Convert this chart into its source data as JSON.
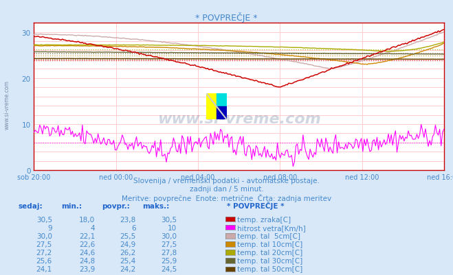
{
  "title": "* POVPREČJE *",
  "bg_color": "#d8e8f8",
  "plot_bg_color": "#ffffff",
  "grid_color": "#ffcccc",
  "text_color": "#4488cc",
  "x_labels": [
    "sob 20:00",
    "ned 00:00",
    "ned 04:00",
    "ned 08:00",
    "ned 12:00",
    "ned 16:00"
  ],
  "x_ticks": [
    0,
    72,
    144,
    216,
    288,
    360
  ],
  "x_total": 360,
  "y_min": 0,
  "y_max": 32,
  "y_ticks": [
    0,
    10,
    20,
    30
  ],
  "subtitle1": "Slovenija / vremenski podatki - avtomatske postaje.",
  "subtitle2": "zadnji dan / 5 minut.",
  "subtitle3": "Meritve: povprečne  Enote: metrične  Črta: zadnja meritev",
  "legend": [
    {
      "label": "temp. zraka[C]",
      "color": "#cc0000"
    },
    {
      "label": "hitrost vetra[Km/h]",
      "color": "#ff00ff"
    },
    {
      "label": "temp. tal  5cm[C]",
      "color": "#ccaaaa"
    },
    {
      "label": "temp. tal 10cm[C]",
      "color": "#cc8800"
    },
    {
      "label": "temp. tal 20cm[C]",
      "color": "#aaaa00"
    },
    {
      "label": "temp. tal 30cm[C]",
      "color": "#666633"
    },
    {
      "label": "temp. tal 50cm[C]",
      "color": "#664400"
    }
  ],
  "table_headers": [
    "sedaj:",
    "min.:",
    "povpr.:",
    "maks.:"
  ],
  "table_data": [
    [
      "30,5",
      "18,0",
      "23,8",
      "30,5"
    ],
    [
      "9",
      "4",
      "6",
      "10"
    ],
    [
      "30,0",
      "22,1",
      "25,5",
      "30,0"
    ],
    [
      "27,5",
      "22,6",
      "24,9",
      "27,5"
    ],
    [
      "27,2",
      "24,6",
      "26,2",
      "27,8"
    ],
    [
      "25,6",
      "24,8",
      "25,4",
      "25,9"
    ],
    [
      "24,1",
      "23,9",
      "24,2",
      "24,5"
    ]
  ],
  "avgs": [
    23.8,
    6.0,
    25.5,
    24.9,
    26.2,
    25.4,
    24.2
  ]
}
